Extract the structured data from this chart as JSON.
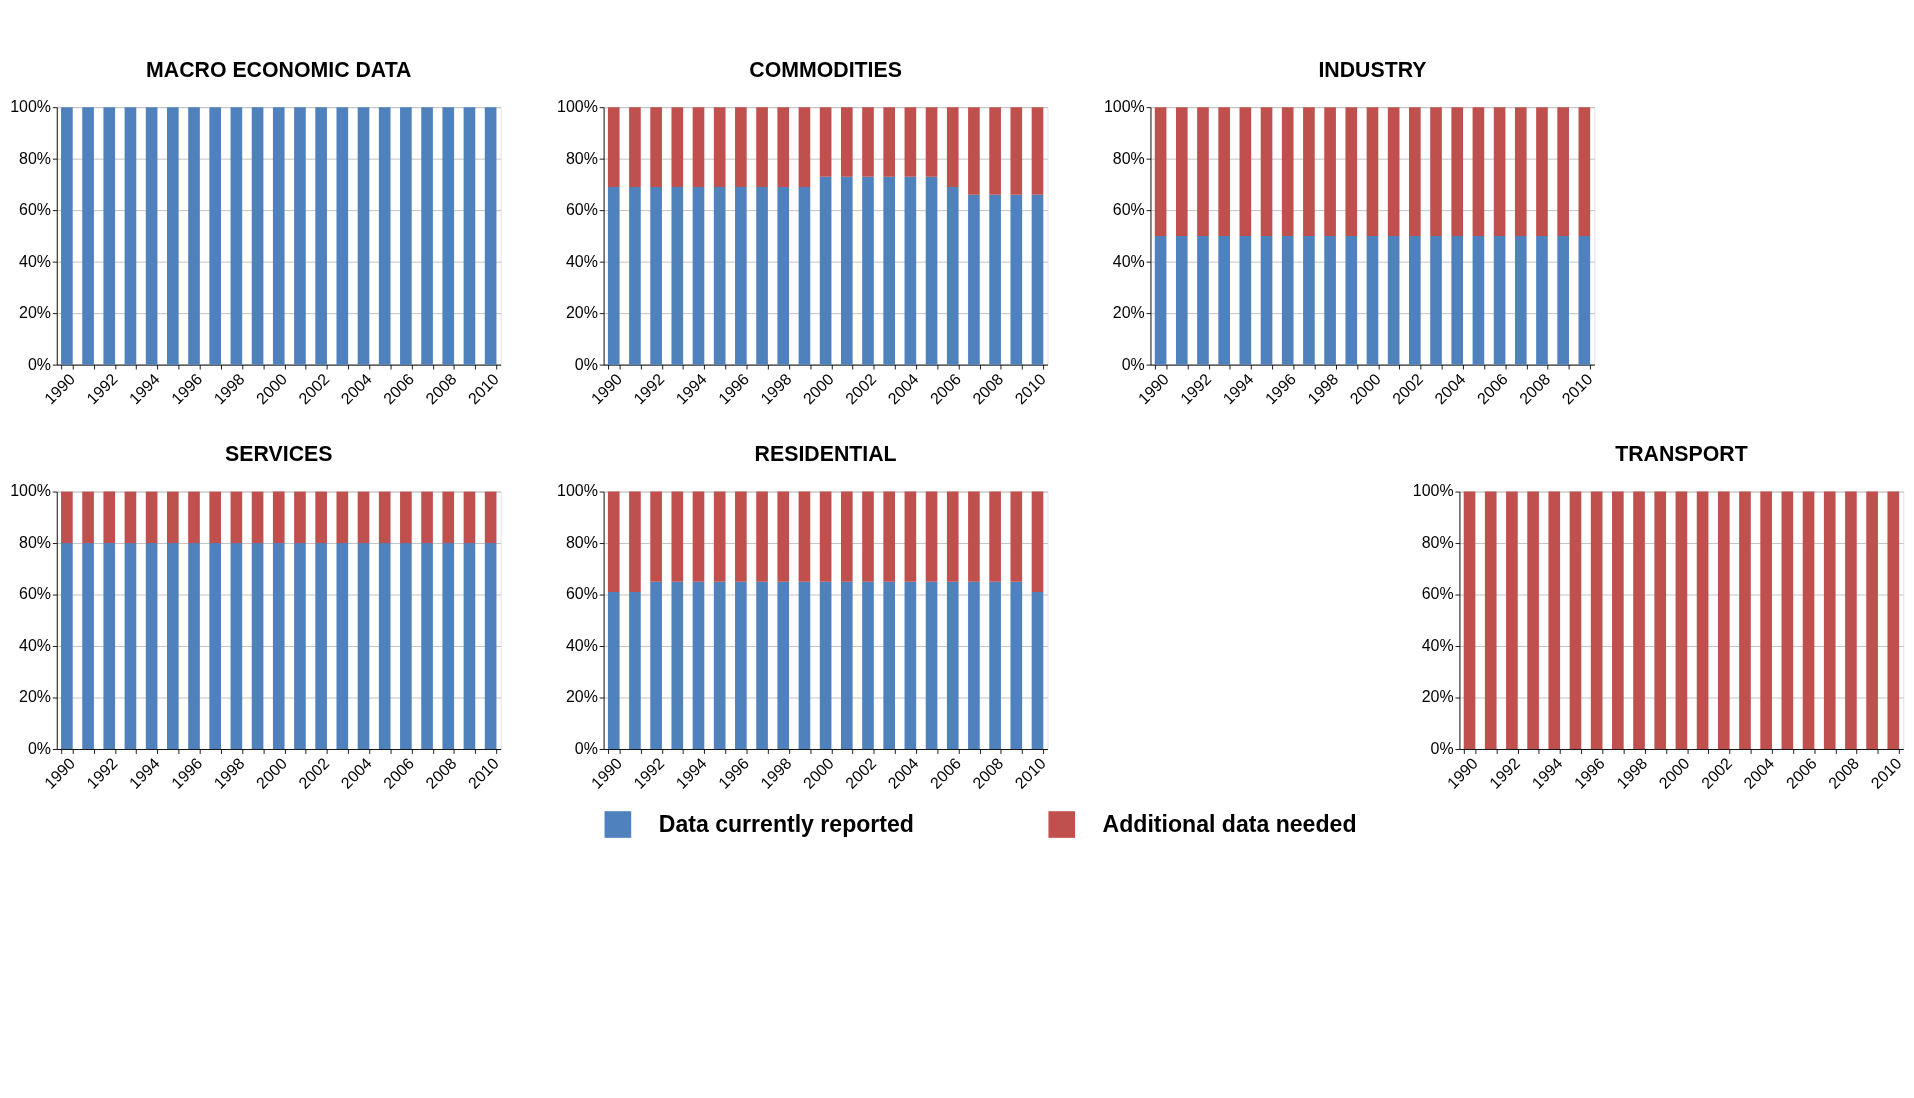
{
  "chart_data": [
    {
      "type": "bar",
      "title": "MACRO ECONOMIC DATA",
      "stacked": true,
      "grid": "y",
      "categories": [
        "1990",
        null,
        "1992",
        null,
        "1994",
        null,
        "1996",
        null,
        "1998",
        null,
        "2000",
        null,
        "2002",
        null,
        "2004",
        null,
        "2006",
        null,
        "2008",
        null,
        "2010"
      ],
      "ylim": [
        0,
        100
      ],
      "yticks": [
        {
          "value": 0,
          "label": "0%"
        },
        {
          "value": 20,
          "label": "20%"
        },
        {
          "value": 40,
          "label": "40%"
        },
        {
          "value": 60,
          "label": "60%"
        },
        {
          "value": 80,
          "label": "80%"
        },
        {
          "value": 100,
          "label": "100%"
        }
      ],
      "series": [
        {
          "color": "#4f81bd",
          "values": [
            100,
            100,
            100,
            100,
            100,
            100,
            100,
            100,
            100,
            100,
            100,
            100,
            100,
            100,
            100,
            100,
            100,
            100,
            100,
            100,
            100
          ]
        },
        {
          "color": "#c0504d",
          "values": [
            0,
            0,
            0,
            0,
            0,
            0,
            0,
            0,
            0,
            0,
            0,
            0,
            0,
            0,
            0,
            0,
            0,
            0,
            0,
            0,
            0
          ]
        }
      ]
    },
    {
      "type": "bar",
      "title": "COMMODITIES",
      "stacked": true,
      "grid": "y",
      "categories": [
        "1990",
        null,
        "1992",
        null,
        "1994",
        null,
        "1996",
        null,
        "1998",
        null,
        "2000",
        null,
        "2002",
        null,
        "2004",
        null,
        "2006",
        null,
        "2008",
        null,
        "2010"
      ],
      "ylim": [
        0,
        100
      ],
      "yticks": [
        {
          "value": 0,
          "label": "0%"
        },
        {
          "value": 20,
          "label": "20%"
        },
        {
          "value": 40,
          "label": "40%"
        },
        {
          "value": 60,
          "label": "60%"
        },
        {
          "value": 80,
          "label": "80%"
        },
        {
          "value": 100,
          "label": "100%"
        }
      ],
      "series": [
        {
          "color": "#4f81bd",
          "values": [
            69,
            69,
            69,
            69,
            69,
            69,
            69,
            69,
            69,
            69,
            73,
            73,
            73,
            73,
            73,
            73,
            69,
            66,
            66,
            66,
            66
          ]
        },
        {
          "color": "#c0504d",
          "values": [
            31,
            31,
            31,
            31,
            31,
            31,
            31,
            31,
            31,
            31,
            27,
            27,
            27,
            27,
            27,
            27,
            31,
            34,
            34,
            34,
            34
          ]
        }
      ]
    },
    {
      "type": "bar",
      "title": "INDUSTRY",
      "stacked": true,
      "grid": "y",
      "categories": [
        "1990",
        null,
        "1992",
        null,
        "1994",
        null,
        "1996",
        null,
        "1998",
        null,
        "2000",
        null,
        "2002",
        null,
        "2004",
        null,
        "2006",
        null,
        "2008",
        null,
        "2010"
      ],
      "ylim": [
        0,
        100
      ],
      "yticks": [
        {
          "value": 0,
          "label": "0%"
        },
        {
          "value": 20,
          "label": "20%"
        },
        {
          "value": 40,
          "label": "40%"
        },
        {
          "value": 60,
          "label": "60%"
        },
        {
          "value": 80,
          "label": "80%"
        },
        {
          "value": 100,
          "label": "100%"
        }
      ],
      "series": [
        {
          "color": "#4f81bd",
          "values": [
            50,
            50,
            50,
            50,
            50,
            50,
            50,
            50,
            50,
            50,
            50,
            50,
            50,
            50,
            50,
            50,
            50,
            50,
            50,
            50,
            50
          ]
        },
        {
          "color": "#c0504d",
          "values": [
            50,
            50,
            50,
            50,
            50,
            50,
            50,
            50,
            50,
            50,
            50,
            50,
            50,
            50,
            50,
            50,
            50,
            50,
            50,
            50,
            50
          ]
        }
      ]
    },
    {
      "type": "bar",
      "title": "SERVICES",
      "stacked": true,
      "grid": "y",
      "categories": [
        "1990",
        null,
        "1992",
        null,
        "1994",
        null,
        "1996",
        null,
        "1998",
        null,
        "2000",
        null,
        "2002",
        null,
        "2004",
        null,
        "2006",
        null,
        "2008",
        null,
        "2010"
      ],
      "ylim": [
        0,
        100
      ],
      "yticks": [
        {
          "value": 0,
          "label": "0%"
        },
        {
          "value": 20,
          "label": "20%"
        },
        {
          "value": 40,
          "label": "40%"
        },
        {
          "value": 60,
          "label": "60%"
        },
        {
          "value": 80,
          "label": "80%"
        },
        {
          "value": 100,
          "label": "100%"
        }
      ],
      "series": [
        {
          "color": "#4f81bd",
          "values": [
            80,
            80,
            80,
            80,
            80,
            80,
            80,
            80,
            80,
            80,
            80,
            80,
            80,
            80,
            80,
            80,
            80,
            80,
            80,
            80,
            80
          ]
        },
        {
          "color": "#c0504d",
          "values": [
            20,
            20,
            20,
            20,
            20,
            20,
            20,
            20,
            20,
            20,
            20,
            20,
            20,
            20,
            20,
            20,
            20,
            20,
            20,
            20,
            20
          ]
        }
      ]
    },
    {
      "type": "bar",
      "title": "RESIDENTIAL",
      "stacked": true,
      "grid": "y",
      "legend": "bottom",
      "categories": [
        "1990",
        null,
        "1992",
        null,
        "1994",
        null,
        "1996",
        null,
        "1998",
        null,
        "2000",
        null,
        "2002",
        null,
        "2004",
        null,
        "2006",
        null,
        "2008",
        null,
        "2010"
      ],
      "ylim": [
        0,
        100
      ],
      "yticks": [
        {
          "value": 0,
          "label": "0%"
        },
        {
          "value": 20,
          "label": "20%"
        },
        {
          "value": 40,
          "label": "40%"
        },
        {
          "value": 60,
          "label": "60%"
        },
        {
          "value": 80,
          "label": "80%"
        },
        {
          "value": 100,
          "label": "100%"
        }
      ],
      "series": [
        {
          "name": "Data currently reported",
          "color": "#4f81bd",
          "values": [
            61,
            61,
            65,
            65,
            65,
            65,
            65,
            65,
            65,
            65,
            65,
            65,
            65,
            65,
            65,
            65,
            65,
            65,
            65,
            65,
            61
          ]
        },
        {
          "name": "Additional data needed",
          "color": "#c0504d",
          "values": [
            39,
            39,
            35,
            35,
            35,
            35,
            35,
            35,
            35,
            35,
            35,
            35,
            35,
            35,
            35,
            35,
            35,
            35,
            35,
            35,
            39
          ]
        }
      ]
    },
    {
      "type": "bar",
      "title": "TRANSPORT",
      "stacked": true,
      "grid": "y",
      "categories": [
        "1990",
        null,
        "1992",
        null,
        "1994",
        null,
        "1996",
        null,
        "1998",
        null,
        "2000",
        null,
        "2002",
        null,
        "2004",
        null,
        "2006",
        null,
        "2008",
        null,
        "2010"
      ],
      "ylim": [
        0,
        100
      ],
      "yticks": [
        {
          "value": 0,
          "label": "0%"
        },
        {
          "value": 20,
          "label": "20%"
        },
        {
          "value": 40,
          "label": "40%"
        },
        {
          "value": 60,
          "label": "60%"
        },
        {
          "value": 80,
          "label": "80%"
        },
        {
          "value": 100,
          "label": "100%"
        }
      ],
      "series": [
        {
          "color": "#4f81bd",
          "values": [
            0,
            0,
            0,
            0,
            0,
            0,
            0,
            0,
            0,
            0,
            0,
            0,
            0,
            0,
            0,
            0,
            0,
            0,
            0,
            0,
            0
          ]
        },
        {
          "color": "#c0504d",
          "values": [
            100,
            100,
            100,
            100,
            100,
            100,
            100,
            100,
            100,
            100,
            100,
            100,
            100,
            100,
            100,
            100,
            100,
            100,
            100,
            100,
            100
          ]
        }
      ]
    }
  ]
}
